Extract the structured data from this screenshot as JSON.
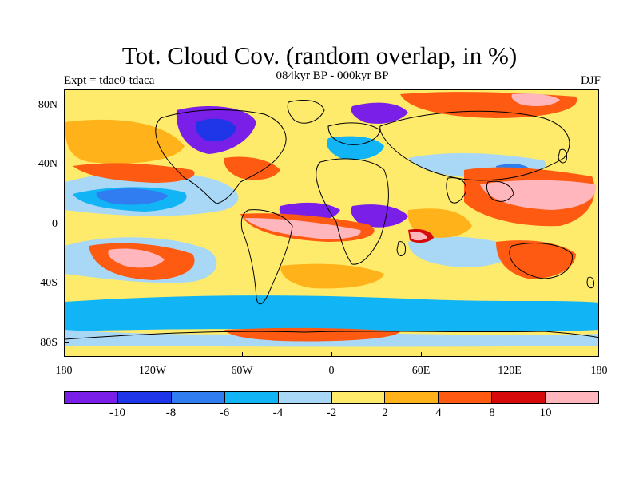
{
  "title": "Tot. Cloud Cov. (random overlap, in %)",
  "subtitle": "084kyr BP - 000kyr BP",
  "experiment": "Expt = tdac0-tdaca",
  "season": "DJF",
  "y_ticks": [
    "80N",
    "40N",
    "0",
    "40S",
    "80S"
  ],
  "x_ticks": [
    "180",
    "120W",
    "60W",
    "0",
    "60E",
    "120E",
    "180"
  ],
  "colorbar": {
    "colors": [
      "#7a1fe8",
      "#1f36e8",
      "#2f7df0",
      "#11b4f5",
      "#a8d8f5",
      "#ffeb6b",
      "#ffb21a",
      "#ff5a12",
      "#d60a0a",
      "#ffb6bd"
    ],
    "labels": [
      "-10",
      "-8",
      "-6",
      "-4",
      "-2",
      "2",
      "4",
      "8",
      "10"
    ]
  },
  "map": {
    "projection": "cylindrical equidistant",
    "lon_range": [
      -180,
      180
    ],
    "lat_range": [
      -90,
      90
    ],
    "background_color": "#ffeb6b",
    "region_colors": {
      "deep_decrease": "#7a1fe8",
      "strong_decrease": "#1f36e8",
      "moderate_decrease": "#2f7df0",
      "slight_decrease": "#11b4f5",
      "weak_decrease": "#a8d8f5",
      "weak_increase": "#ffb21a",
      "moderate_increase": "#ff5a12",
      "strong_increase": "#d60a0a",
      "extreme_increase": "#ffb6bd"
    }
  }
}
